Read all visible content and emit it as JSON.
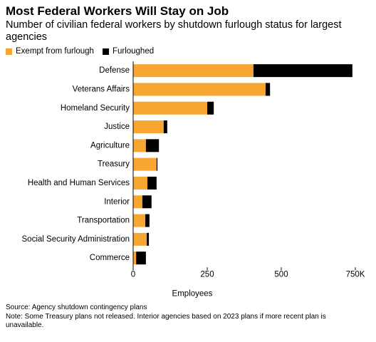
{
  "chart_data": {
    "type": "stacked-bar-horizontal",
    "title": "Most Federal Workers Will Stay on Job",
    "subtitle": "Number of civilian federal workers by shutdown furlough status for largest agencies",
    "categories": [
      "Defense",
      "Veterans Affairs",
      "Homeland Security",
      "Justice",
      "Agriculture",
      "Treasury",
      "Health and Human Services",
      "Interior",
      "Transportation",
      "Social Security Administration",
      "Commerce"
    ],
    "series": [
      {
        "name": "Exempt from furlough",
        "color": "#f7a631",
        "values": [
          406,
          447,
          250,
          103,
          43,
          79,
          48,
          31,
          41,
          46,
          10
        ]
      },
      {
        "name": "Furloughed",
        "color": "#000000",
        "values": [
          334,
          15,
          22,
          12,
          44,
          3,
          31,
          31,
          14,
          7,
          33
        ]
      }
    ],
    "xlim": [
      0,
      750
    ],
    "xticks": [
      0,
      250,
      500,
      {
        "value": 750,
        "label": "750K"
      }
    ],
    "xlabel": "Employees",
    "source": "Source: Agency shutdown contingency plans",
    "note": "Note: Some Treasury plans not released. Interior agencies based on 2023 plans if more recent plan is unavailable."
  }
}
